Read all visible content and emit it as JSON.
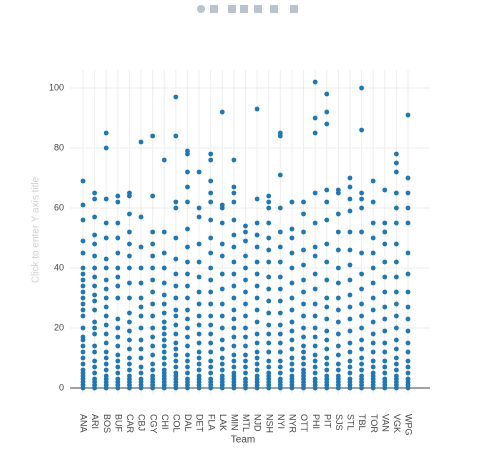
{
  "chart_data": {
    "type": "strip",
    "x_label": "Team",
    "y_label": "Click to enter Y axis title",
    "color": "#1f77b4",
    "grid": true,
    "ylim": [
      -2,
      106
    ],
    "yticks": [
      0,
      20,
      40,
      60,
      80,
      100
    ],
    "categories": [
      "ANA",
      "ARI",
      "BOS",
      "BUF",
      "CAR",
      "CBJ",
      "CGY",
      "CHI",
      "COL",
      "DAL",
      "DET",
      "FLA",
      "LAK",
      "MIN",
      "MTL",
      "NJD",
      "NSH",
      "NYI",
      "NYR",
      "OTT",
      "PHI",
      "PIT",
      "SJS",
      "STL",
      "TBL",
      "TOR",
      "VAN",
      "VGK",
      "WPG"
    ],
    "values": [
      [
        0,
        1,
        2,
        3,
        4,
        5,
        6,
        8,
        10,
        12,
        14,
        16,
        17,
        20,
        24,
        26,
        28,
        30,
        32,
        34,
        36,
        38,
        40,
        45,
        49,
        56,
        61,
        69
      ],
      [
        0,
        1,
        2,
        3,
        5,
        7,
        9,
        12,
        14,
        18,
        20,
        22,
        26,
        29,
        31,
        34,
        37,
        40,
        44,
        48,
        51,
        57,
        63,
        65
      ],
      [
        0,
        1,
        2,
        3,
        4,
        6,
        8,
        10,
        12,
        15,
        18,
        21,
        24,
        27,
        30,
        33,
        36,
        40,
        43,
        50,
        55,
        63,
        80,
        85
      ],
      [
        0,
        1,
        2,
        3,
        5,
        7,
        9,
        11,
        14,
        17,
        20,
        23,
        30,
        34,
        37,
        40,
        45,
        50,
        55,
        62,
        64
      ],
      [
        0,
        1,
        2,
        3,
        4,
        6,
        8,
        10,
        13,
        16,
        19,
        22,
        25,
        30,
        35,
        40,
        44,
        48,
        52,
        58,
        64,
        65
      ],
      [
        0,
        1,
        2,
        3,
        5,
        7,
        10,
        13,
        16,
        20,
        24,
        27,
        30,
        35,
        40,
        47,
        57,
        82
      ],
      [
        0,
        1,
        2,
        3,
        4,
        6,
        8,
        11,
        14,
        17,
        20,
        24,
        28,
        32,
        36,
        40,
        44,
        48,
        52,
        64,
        84
      ],
      [
        0,
        1,
        2,
        3,
        4,
        5,
        6,
        8,
        10,
        12,
        14,
        16,
        18,
        20,
        22,
        25,
        28,
        31,
        35,
        40,
        45,
        52,
        76
      ],
      [
        0,
        1,
        2,
        3,
        4,
        5,
        7,
        9,
        11,
        13,
        15,
        18,
        21,
        24,
        26,
        30,
        34,
        38,
        43,
        50,
        60,
        62,
        84,
        97
      ],
      [
        0,
        1,
        2,
        3,
        5,
        7,
        9,
        11,
        14,
        17,
        20,
        23,
        26,
        30,
        34,
        38,
        42,
        47,
        53,
        62,
        67,
        72,
        78,
        79
      ],
      [
        0,
        1,
        2,
        3,
        4,
        6,
        8,
        10,
        12,
        15,
        18,
        21,
        24,
        28,
        32,
        37,
        42,
        48,
        57,
        60,
        72
      ],
      [
        0,
        1,
        2,
        3,
        5,
        7,
        9,
        12,
        15,
        18,
        21,
        24,
        28,
        32,
        36,
        40,
        45,
        50,
        56,
        62,
        65,
        69,
        76,
        78
      ],
      [
        0,
        1,
        2,
        3,
        4,
        6,
        8,
        10,
        13,
        16,
        20,
        24,
        28,
        33,
        38,
        44,
        48,
        55,
        60,
        61,
        92
      ],
      [
        0,
        1,
        2,
        3,
        4,
        5,
        7,
        9,
        11,
        14,
        17,
        20,
        23,
        26,
        30,
        34,
        38,
        42,
        47,
        51,
        56,
        62,
        65,
        67,
        76
      ],
      [
        0,
        1,
        2,
        3,
        5,
        7,
        9,
        11,
        14,
        17,
        20,
        24,
        28,
        32,
        36,
        40,
        44,
        49,
        52,
        54
      ],
      [
        0,
        1,
        2,
        3,
        4,
        6,
        8,
        10,
        12,
        15,
        18,
        22,
        26,
        30,
        34,
        38,
        42,
        47,
        51,
        55,
        63,
        93
      ],
      [
        0,
        1,
        2,
        3,
        4,
        5,
        7,
        9,
        12,
        15,
        18,
        21,
        25,
        29,
        33,
        37,
        42,
        46,
        50,
        55,
        60,
        62,
        64
      ],
      [
        0,
        1,
        2,
        3,
        5,
        7,
        9,
        12,
        15,
        18,
        21,
        25,
        29,
        33,
        37,
        42,
        47,
        52,
        60,
        71,
        84,
        85
      ],
      [
        0,
        1,
        2,
        3,
        4,
        6,
        8,
        10,
        13,
        16,
        19,
        22,
        26,
        30,
        35,
        40,
        45,
        50,
        53,
        62
      ],
      [
        0,
        1,
        2,
        3,
        4,
        5,
        6,
        8,
        10,
        12,
        14,
        17,
        20,
        24,
        28,
        32,
        36,
        41,
        46,
        52,
        58,
        62
      ],
      [
        0,
        1,
        2,
        3,
        5,
        7,
        9,
        11,
        14,
        17,
        20,
        24,
        28,
        33,
        38,
        44,
        47,
        55,
        65,
        85,
        90,
        102
      ],
      [
        0,
        1,
        2,
        3,
        4,
        6,
        8,
        10,
        13,
        16,
        19,
        23,
        27,
        30,
        36,
        42,
        48,
        56,
        62,
        66,
        88,
        92,
        98
      ],
      [
        0,
        1,
        2,
        3,
        4,
        6,
        8,
        11,
        14,
        18,
        22,
        26,
        30,
        35,
        40,
        46,
        52,
        58,
        65,
        66
      ],
      [
        0,
        1,
        2,
        3,
        5,
        7,
        9,
        12,
        15,
        19,
        23,
        27,
        31,
        36,
        41,
        46,
        52,
        59,
        63,
        67,
        70
      ],
      [
        0,
        1,
        2,
        3,
        4,
        6,
        8,
        10,
        13,
        16,
        20,
        24,
        28,
        33,
        38,
        45,
        52,
        60,
        63,
        65,
        86,
        100
      ],
      [
        0,
        1,
        2,
        3,
        4,
        5,
        7,
        9,
        12,
        15,
        18,
        22,
        26,
        30,
        35,
        40,
        45,
        50,
        55,
        62,
        69
      ],
      [
        0,
        1,
        2,
        3,
        5,
        7,
        9,
        12,
        15,
        19,
        23,
        27,
        32,
        37,
        42,
        48,
        52,
        55,
        66
      ],
      [
        0,
        1,
        2,
        3,
        4,
        6,
        8,
        10,
        13,
        16,
        20,
        24,
        28,
        32,
        37,
        42,
        48,
        55,
        60,
        65,
        72,
        75,
        78
      ],
      [
        0,
        1,
        2,
        3,
        5,
        7,
        9,
        12,
        15,
        19,
        23,
        27,
        32,
        38,
        45,
        55,
        60,
        65,
        70,
        91
      ]
    ]
  }
}
